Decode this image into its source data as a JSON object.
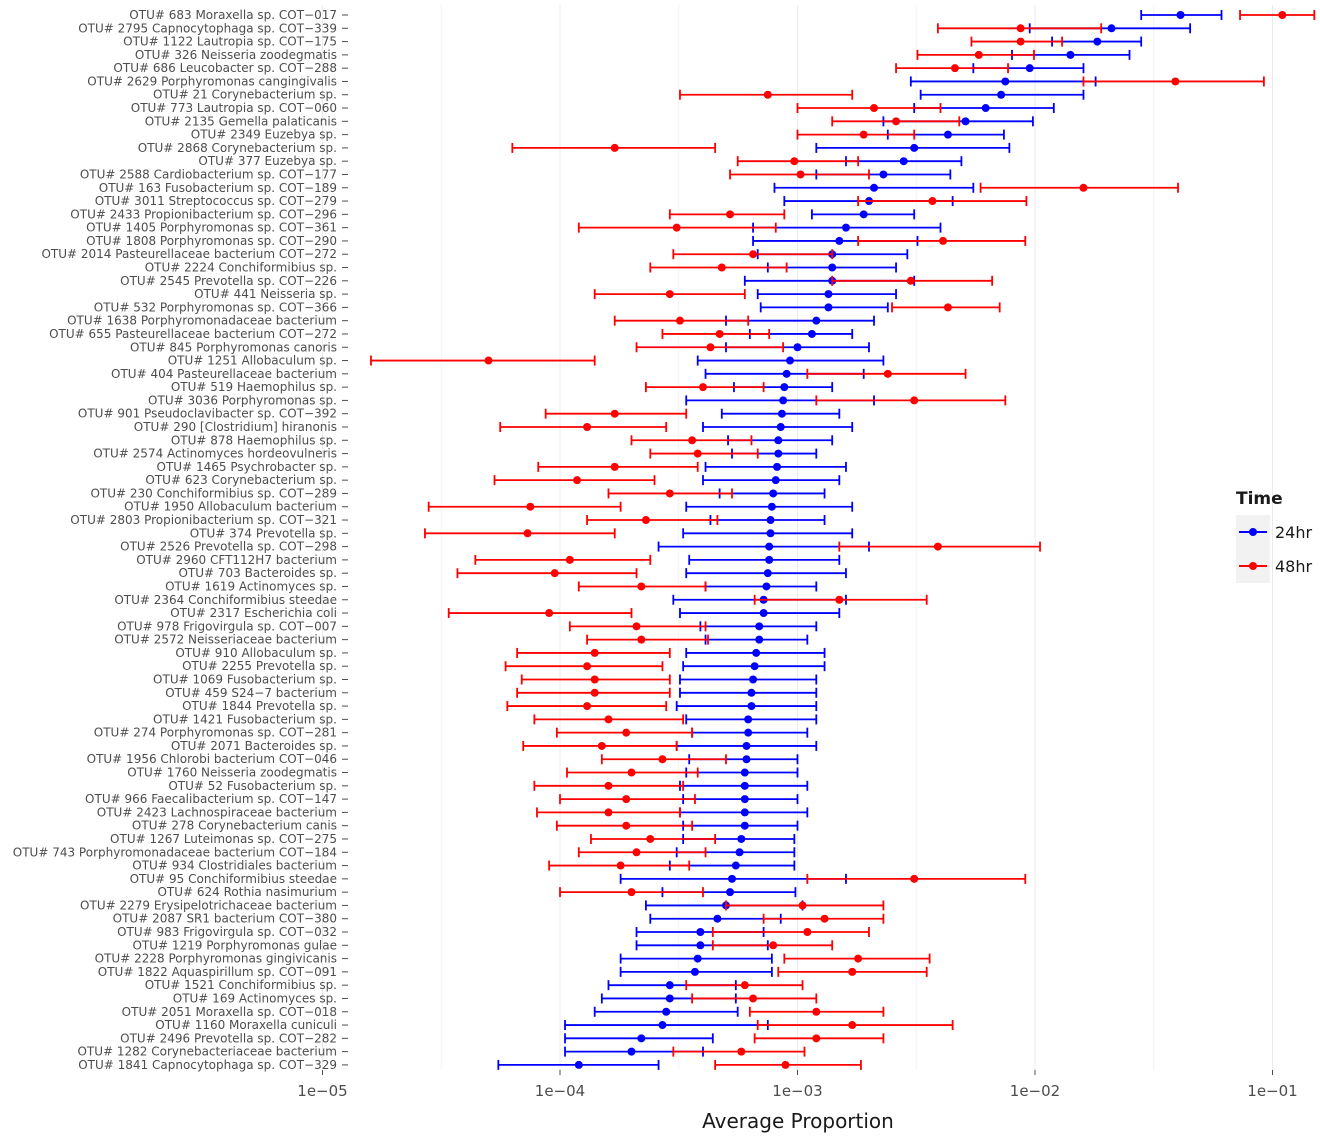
{
  "chart_data": {
    "type": "scatter",
    "xlabel": "Average Proportion",
    "ylabel": "",
    "xscale": "log10",
    "xlim": [
      1e-05,
      0.16
    ],
    "xticks": [
      1e-05,
      0.0001,
      0.001,
      0.01,
      0.1
    ],
    "xtick_labels": [
      "1e−05",
      "1e−04",
      "1e−03",
      "1e−02",
      "1e−01"
    ],
    "grid": true,
    "legend": {
      "title": "Time",
      "position": "right",
      "entries": [
        {
          "label": "24hr",
          "color": "#0000ff"
        },
        {
          "label": "48hr",
          "color": "#ff0000"
        }
      ]
    },
    "colors": {
      "24hr": "#0000ff",
      "48hr": "#ff0000",
      "grid": "#ebebeb"
    },
    "categories": [
      "OTU# 683 Moraxella sp. COT−017",
      "OTU# 2795 Capnocytophaga sp. COT−339",
      "OTU# 1122 Lautropia sp. COT−175",
      "OTU# 326 Neisseria zoodegmatis",
      "OTU# 686 Leucobacter sp. COT−288",
      "OTU# 2629 Porphyromonas cangingivalis",
      "OTU# 21 Corynebacterium sp.",
      "OTU# 773 Lautropia sp. COT−060",
      "OTU# 2135 Gemella palaticanis",
      "OTU# 2349 Euzebya sp.",
      "OTU# 2868 Corynebacterium sp.",
      "OTU# 377 Euzebya sp.",
      "OTU# 2588 Cardiobacterium sp. COT−177",
      "OTU# 163 Fusobacterium sp. COT−189",
      "OTU# 3011 Streptococcus sp. COT−279",
      "OTU# 2433 Propionibacterium sp. COT−296",
      "OTU# 1405 Porphyromonas sp. COT−361",
      "OTU# 1808 Porphyromonas sp. COT−290",
      "OTU# 2014 Pasteurellaceae bacterium COT−272",
      "OTU# 2224 Conchiformibius sp.",
      "OTU# 2545 Prevotella sp. COT−226",
      "OTU# 441 Neisseria sp.",
      "OTU# 532 Porphyromonas sp. COT−366",
      "OTU# 1638 Porphyromonadaceae bacterium",
      "OTU# 655 Pasteurellaceae bacterium COT−272",
      "OTU# 845 Porphyromonas canoris",
      "OTU# 1251 Allobaculum sp.",
      "OTU# 404 Pasteurellaceae bacterium",
      "OTU# 519 Haemophilus sp.",
      "OTU# 3036 Porphyromonas sp.",
      "OTU# 901 Pseudoclavibacter sp. COT−392",
      "OTU# 290 [Clostridium] hiranonis",
      "OTU# 878 Haemophilus sp.",
      "OTU# 2574 Actinomyces hordeovulneris",
      "OTU# 1465 Psychrobacter sp.",
      "OTU# 623 Corynebacterium sp.",
      "OTU# 230 Conchiformibius sp. COT−289",
      "OTU# 1950 Allobaculum bacterium",
      "OTU# 2803 Propionibacterium sp. COT−321",
      "OTU# 374 Prevotella sp.",
      "OTU# 2526 Prevotella sp. COT−298",
      "OTU# 2960 CFT112H7 bacterium",
      "OTU# 703 Bacteroides sp.",
      "OTU# 1619 Actinomyces sp.",
      "OTU# 2364 Conchiformibius steedae",
      "OTU# 2317 Escherichia coli",
      "OTU# 978 Frigovirgula sp. COT−007",
      "OTU# 2572 Neisseriaceae bacterium",
      "OTU# 910 Allobaculum sp.",
      "OTU# 2255 Prevotella sp.",
      "OTU# 1069 Fusobacterium sp.",
      "OTU# 459 S24−7 bacterium",
      "OTU# 1844 Prevotella sp.",
      "OTU# 1421 Fusobacterium sp.",
      "OTU# 274 Porphyromonas sp. COT−281",
      "OTU# 2071 Bacteroides sp.",
      "OTU# 1956 Chlorobi bacterium COT−046",
      "OTU# 1760 Neisseria zoodegmatis",
      "OTU# 52 Fusobacterium sp.",
      "OTU# 966 Faecalibacterium sp. COT−147",
      "OTU# 2423 Lachnospiraceae bacterium",
      "OTU# 278 Corynebacterium canis",
      "OTU# 1267 Luteimonas sp. COT−275",
      "OTU# 743 Porphyromonadaceae bacterium COT−184",
      "OTU# 934 Clostridiales bacterium",
      "OTU# 95 Conchiformibius steedae",
      "OTU# 624 Rothia nasimurium",
      "OTU# 2279 Erysipelotrichaceae bacterium",
      "OTU# 2087 SR1 bacterium COT−380",
      "OTU# 983 Frigovirgula sp. COT−032",
      "OTU# 1219 Porphyromonas gulae",
      "OTU# 2228 Porphyromonas gingivicanis",
      "OTU# 1822 Aquaspirillum sp. COT−091",
      "OTU# 1521 Conchiformibius sp.",
      "OTU# 169 Actinomyces sp.",
      "OTU# 2051 Moraxella sp. COT−018",
      "OTU# 1160 Moraxella cuniculi",
      "OTU# 2496 Prevotella sp. COT−282",
      "OTU# 1282 Corynebacteriaceae bacterium",
      "OTU# 1841 Capnocytophaga sp. COT−329"
    ],
    "series": [
      {
        "name": "24hr",
        "values": [
          0.041,
          0.021,
          0.0183,
          0.0141,
          0.0095,
          0.0075,
          0.0072,
          0.0062,
          0.0051,
          0.0043,
          0.0031,
          0.0028,
          0.0023,
          0.0021,
          0.002,
          0.0019,
          0.0016,
          0.0015,
          0.0014,
          0.0014,
          0.0014,
          0.00135,
          0.00135,
          0.0012,
          0.00115,
          0.001,
          0.00093,
          0.0009,
          0.00088,
          0.00087,
          0.00086,
          0.00085,
          0.00083,
          0.00083,
          0.00082,
          0.00081,
          0.00079,
          0.00078,
          0.00077,
          0.00077,
          0.00076,
          0.00076,
          0.00075,
          0.00074,
          0.00072,
          0.00072,
          0.00069,
          0.00069,
          0.00067,
          0.00066,
          0.00065,
          0.00064,
          0.00064,
          0.00062,
          0.00062,
          0.00061,
          0.00061,
          0.0006,
          0.0006,
          0.0006,
          0.0006,
          0.0006,
          0.00058,
          0.00057,
          0.00055,
          0.00053,
          0.00052,
          0.0005,
          0.00046,
          0.00039,
          0.00039,
          0.00038,
          0.00037,
          0.00029,
          0.00029,
          0.00028,
          0.00027,
          0.00022,
          0.0002,
          0.00012
        ],
        "lower": [
          0.028,
          0.0095,
          0.0118,
          0.008,
          0.0055,
          0.003,
          0.0033,
          0.0031,
          0.0023,
          0.0024,
          0.0012,
          0.0016,
          0.0012,
          0.0008,
          0.00088,
          0.00115,
          0.00065,
          0.00065,
          0.00068,
          0.00075,
          0.0006,
          0.00068,
          0.0007,
          0.0005,
          0.00063,
          0.0005,
          0.00038,
          0.00041,
          0.00054,
          0.00034,
          0.00048,
          0.0004,
          0.00051,
          0.00053,
          0.00041,
          0.0004,
          0.00047,
          0.00034,
          0.00043,
          0.00033,
          0.00026,
          0.00035,
          0.00034,
          0.00041,
          0.0003,
          0.00032,
          0.00039,
          0.00041,
          0.00034,
          0.00033,
          0.00032,
          0.00032,
          0.00031,
          0.00034,
          0.00036,
          0.00031,
          0.00035,
          0.00034,
          0.00032,
          0.00033,
          0.00032,
          0.00033,
          0.00033,
          0.00031,
          0.00029,
          0.00018,
          0.00027,
          0.00023,
          0.00024,
          0.00021,
          0.00021,
          0.00018,
          0.00018,
          0.00016,
          0.00015,
          0.00014,
          0.000105,
          0.000105,
          0.000105,
          5.5e-05
        ],
        "upper": [
          0.061,
          0.045,
          0.028,
          0.025,
          0.016,
          0.018,
          0.016,
          0.012,
          0.0098,
          0.0074,
          0.0078,
          0.0049,
          0.0044,
          0.0055,
          0.0045,
          0.0031,
          0.004,
          0.0032,
          0.0029,
          0.0026,
          0.0031,
          0.0026,
          0.0024,
          0.0021,
          0.0017,
          0.002,
          0.0023,
          0.0019,
          0.0014,
          0.0021,
          0.0015,
          0.0017,
          0.0014,
          0.0012,
          0.0016,
          0.0015,
          0.0013,
          0.0017,
          0.0013,
          0.0017,
          0.002,
          0.0015,
          0.0016,
          0.0012,
          0.0016,
          0.0015,
          0.0012,
          0.0011,
          0.0013,
          0.0013,
          0.0012,
          0.0012,
          0.0012,
          0.0012,
          0.0011,
          0.0012,
          0.001,
          0.001,
          0.0011,
          0.001,
          0.0011,
          0.001,
          0.00097,
          0.00097,
          0.00097,
          0.0016,
          0.00098,
          0.00105,
          0.00085,
          0.00072,
          0.00075,
          0.00078,
          0.00078,
          0.00055,
          0.00055,
          0.00056,
          0.00075,
          0.00044,
          0.0004,
          0.00026
        ]
      },
      {
        "name": "48hr",
        "values": [
          0.11,
          0.0087,
          0.0087,
          0.0058,
          0.0046,
          0.039,
          0.00075,
          0.0021,
          0.0026,
          0.0019,
          0.00017,
          0.00097,
          0.00103,
          0.016,
          0.0037,
          0.00052,
          0.00031,
          0.0041,
          0.00065,
          0.00048,
          0.003,
          0.00029,
          0.0043,
          0.00032,
          0.00047,
          0.00043,
          5e-05,
          0.0024,
          0.0004,
          0.0031,
          0.00017,
          0.00013,
          0.00036,
          0.00038,
          0.00017,
          0.000118,
          0.00029,
          7.5e-05,
          0.00023,
          7.3e-05,
          0.0039,
          0.00011,
          9.5e-05,
          0.00022,
          0.0015,
          9e-05,
          0.00021,
          0.00022,
          0.00014,
          0.00013,
          0.00014,
          0.00014,
          0.00013,
          0.00016,
          0.00019,
          0.00015,
          0.00027,
          0.0002,
          0.00016,
          0.00019,
          0.00016,
          0.00019,
          0.00024,
          0.00021,
          0.00018,
          0.0031,
          0.0002,
          0.00105,
          0.0013,
          0.0011,
          0.00079,
          0.0018,
          0.0017,
          0.0006,
          0.00065,
          0.0012,
          0.0017,
          0.0012,
          0.00058,
          0.00089
        ],
        "lower": [
          0.073,
          0.0039,
          0.0054,
          0.0032,
          0.0026,
          0.016,
          0.00032,
          0.001,
          0.0014,
          0.001,
          6.3e-05,
          0.00056,
          0.00052,
          0.0059,
          0.0018,
          0.00029,
          0.00012,
          0.0018,
          0.0003,
          0.00024,
          0.0014,
          0.00014,
          0.0025,
          0.00017,
          0.00027,
          0.00021,
          1.6e-05,
          0.0011,
          0.00023,
          0.0012,
          8.7e-05,
          5.6e-05,
          0.0002,
          0.00024,
          8.1e-05,
          5.3e-05,
          0.00016,
          2.8e-05,
          0.00013,
          2.7e-05,
          0.0015,
          4.4e-05,
          3.7e-05,
          0.00012,
          0.00066,
          3.4e-05,
          0.00011,
          0.00013,
          6.6e-05,
          5.9e-05,
          6.9e-05,
          6.6e-05,
          6e-05,
          7.8e-05,
          9.7e-05,
          7e-05,
          0.00015,
          0.000107,
          7.8e-05,
          0.0001,
          8e-05,
          9.7e-05,
          0.000135,
          0.00012,
          9e-05,
          0.0011,
          0.0001,
          0.0005,
          0.00072,
          0.00044,
          0.00044,
          0.00088,
          0.00083,
          0.00034,
          0.00036,
          0.00063,
          0.00068,
          0.00066,
          0.0003,
          0.00045
        ],
        "upper": [
          0.15,
          0.019,
          0.013,
          0.0099,
          0.0077,
          0.092,
          0.0017,
          0.004,
          0.0048,
          0.0031,
          0.00045,
          0.0018,
          0.002,
          0.04,
          0.0092,
          0.00088,
          0.00081,
          0.0091,
          0.0014,
          0.0009,
          0.0066,
          0.0006,
          0.0071,
          0.00062,
          0.00076,
          0.00087,
          0.00014,
          0.0051,
          0.00072,
          0.0075,
          0.00034,
          0.00028,
          0.00064,
          0.00068,
          0.00038,
          0.00025,
          0.00053,
          0.00018,
          0.00046,
          0.00017,
          0.0105,
          0.00024,
          0.00021,
          0.00041,
          0.0035,
          0.0002,
          0.00041,
          0.00042,
          0.00029,
          0.00027,
          0.00029,
          0.00029,
          0.00028,
          0.00033,
          0.00036,
          0.00031,
          0.0005,
          0.00038,
          0.00033,
          0.00037,
          0.00032,
          0.00036,
          0.00045,
          0.00041,
          0.00035,
          0.0091,
          0.0004,
          0.0023,
          0.0023,
          0.002,
          0.0014,
          0.0036,
          0.0035,
          0.00105,
          0.0012,
          0.0023,
          0.0045,
          0.0023,
          0.00107,
          0.00185
        ]
      }
    ]
  }
}
